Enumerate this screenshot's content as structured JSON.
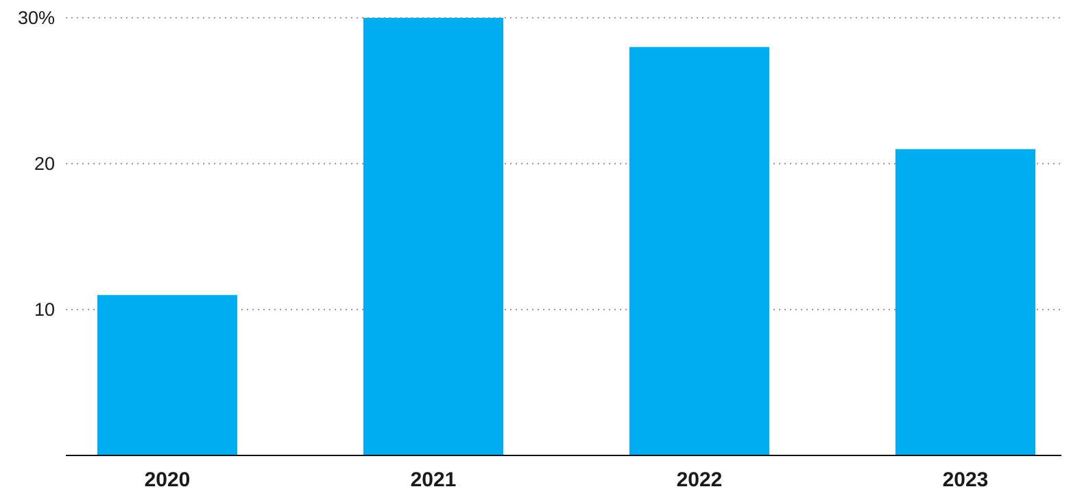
{
  "chart_data": {
    "type": "bar",
    "categories": [
      "2020",
      "2021",
      "2022",
      "2023"
    ],
    "values": [
      11,
      30,
      28,
      21
    ],
    "ylim": [
      0,
      30
    ],
    "yticks": [
      10,
      20,
      30
    ],
    "ytick_labels": [
      "10",
      "20",
      "30%"
    ],
    "grid": true,
    "bar_color": "#00AEEF"
  }
}
